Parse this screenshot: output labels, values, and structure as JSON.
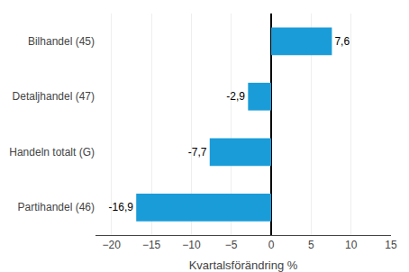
{
  "chart_data": {
    "type": "bar",
    "orientation": "horizontal",
    "categories": [
      "Partihandel (46)",
      "Handeln totalt (G)",
      "Detaljhandel (47)",
      "Bilhandel (45)"
    ],
    "values": [
      -16.9,
      -7.7,
      -2.9,
      7.6
    ],
    "value_labels": [
      "-16,9",
      "-7,7",
      "-2,9",
      "7,6"
    ],
    "color": "#1a9cd8",
    "xlabel": "Kvartalsförändring %",
    "xlim": [
      -22,
      15
    ],
    "xticks": [
      -20,
      -15,
      -10,
      -5,
      0,
      5,
      10,
      15
    ],
    "grid": true
  }
}
